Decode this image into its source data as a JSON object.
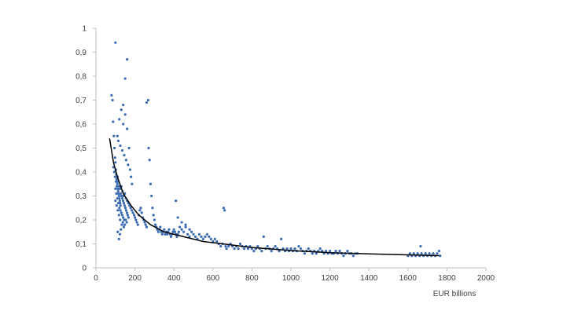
{
  "chart_data": {
    "type": "scatter",
    "title": "",
    "xlabel": "EUR billions",
    "ylabel": "",
    "xlim": [
      0,
      2000
    ],
    "ylim": [
      0,
      1
    ],
    "x_ticks": [
      0,
      200,
      400,
      600,
      800,
      1000,
      1200,
      1400,
      1600,
      1800,
      2000
    ],
    "y_ticks": [
      0,
      0.1,
      0.2,
      0.3,
      0.4,
      0.5,
      0.6,
      0.7,
      0.8,
      0.9,
      1
    ],
    "y_tick_labels": [
      "0",
      "0,1",
      "0,2",
      "0,3",
      "0,4",
      "0,5",
      "0,6",
      "0,7",
      "0,8",
      "0,9",
      "1"
    ],
    "grid": false,
    "legend": "none",
    "colors": {
      "points": "#3a6bb0",
      "trend": "#000000",
      "axis": "#bfbfbf"
    },
    "series": [
      {
        "points": [
          [
            80,
            0.72
          ],
          [
            85,
            0.7
          ],
          [
            88,
            0.61
          ],
          [
            92,
            0.55
          ],
          [
            95,
            0.5
          ],
          [
            98,
            0.46
          ],
          [
            100,
            0.44
          ],
          [
            102,
            0.41
          ],
          [
            104,
            0.39
          ],
          [
            106,
            0.37
          ],
          [
            108,
            0.36
          ],
          [
            110,
            0.35
          ],
          [
            112,
            0.33
          ],
          [
            114,
            0.32
          ],
          [
            116,
            0.31
          ],
          [
            118,
            0.3
          ],
          [
            120,
            0.29
          ],
          [
            122,
            0.28
          ],
          [
            124,
            0.27
          ],
          [
            126,
            0.26
          ],
          [
            90,
            0.42
          ],
          [
            94,
            0.4
          ],
          [
            98,
            0.38
          ],
          [
            103,
            0.36
          ],
          [
            107,
            0.34
          ],
          [
            111,
            0.38
          ],
          [
            115,
            0.36
          ],
          [
            119,
            0.34
          ],
          [
            123,
            0.33
          ],
          [
            127,
            0.31
          ],
          [
            131,
            0.3
          ],
          [
            135,
            0.29
          ],
          [
            139,
            0.28
          ],
          [
            143,
            0.27
          ],
          [
            147,
            0.26
          ],
          [
            151,
            0.25
          ],
          [
            155,
            0.24
          ],
          [
            159,
            0.23
          ],
          [
            163,
            0.22
          ],
          [
            167,
            0.21
          ],
          [
            100,
            0.33
          ],
          [
            105,
            0.31
          ],
          [
            110,
            0.29
          ],
          [
            115,
            0.27
          ],
          [
            120,
            0.25
          ],
          [
            125,
            0.24
          ],
          [
            130,
            0.23
          ],
          [
            135,
            0.22
          ],
          [
            140,
            0.21
          ],
          [
            145,
            0.2
          ],
          [
            112,
            0.15
          ],
          [
            118,
            0.12
          ],
          [
            123,
            0.14
          ],
          [
            128,
            0.16
          ],
          [
            133,
            0.18
          ],
          [
            138,
            0.19
          ],
          [
            143,
            0.17
          ],
          [
            148,
            0.18
          ],
          [
            153,
            0.2
          ],
          [
            158,
            0.19
          ],
          [
            100,
            0.94
          ],
          [
            160,
            0.87
          ],
          [
            150,
            0.79
          ],
          [
            140,
            0.68
          ],
          [
            130,
            0.66
          ],
          [
            150,
            0.64
          ],
          [
            120,
            0.62
          ],
          [
            140,
            0.6
          ],
          [
            160,
            0.58
          ],
          [
            170,
            0.5
          ],
          [
            110,
            0.55
          ],
          [
            115,
            0.53
          ],
          [
            125,
            0.51
          ],
          [
            135,
            0.49
          ],
          [
            145,
            0.47
          ],
          [
            155,
            0.45
          ],
          [
            165,
            0.43
          ],
          [
            175,
            0.41
          ],
          [
            180,
            0.38
          ],
          [
            185,
            0.35
          ],
          [
            100,
            0.28
          ],
          [
            106,
            0.26
          ],
          [
            112,
            0.24
          ],
          [
            118,
            0.22
          ],
          [
            124,
            0.2
          ],
          [
            130,
            0.34
          ],
          [
            136,
            0.32
          ],
          [
            142,
            0.3
          ],
          [
            148,
            0.31
          ],
          [
            154,
            0.29
          ],
          [
            160,
            0.28
          ],
          [
            166,
            0.27
          ],
          [
            172,
            0.26
          ],
          [
            178,
            0.25
          ],
          [
            184,
            0.24
          ],
          [
            190,
            0.23
          ],
          [
            196,
            0.22
          ],
          [
            200,
            0.21
          ],
          [
            205,
            0.2
          ],
          [
            210,
            0.19
          ],
          [
            215,
            0.18
          ],
          [
            220,
            0.22
          ],
          [
            225,
            0.24
          ],
          [
            230,
            0.25
          ],
          [
            235,
            0.23
          ],
          [
            240,
            0.21
          ],
          [
            245,
            0.2
          ],
          [
            250,
            0.19
          ],
          [
            255,
            0.18
          ],
          [
            260,
            0.17
          ],
          [
            260,
            0.69
          ],
          [
            268,
            0.7
          ],
          [
            270,
            0.5
          ],
          [
            275,
            0.45
          ],
          [
            280,
            0.35
          ],
          [
            285,
            0.3
          ],
          [
            290,
            0.25
          ],
          [
            295,
            0.22
          ],
          [
            300,
            0.2
          ],
          [
            305,
            0.18
          ],
          [
            310,
            0.17
          ],
          [
            315,
            0.16
          ],
          [
            320,
            0.15
          ],
          [
            325,
            0.16
          ],
          [
            330,
            0.17
          ],
          [
            335,
            0.15
          ],
          [
            340,
            0.14
          ],
          [
            345,
            0.15
          ],
          [
            350,
            0.16
          ],
          [
            355,
            0.14
          ],
          [
            360,
            0.15
          ],
          [
            365,
            0.14
          ],
          [
            370,
            0.15
          ],
          [
            375,
            0.16
          ],
          [
            380,
            0.14
          ],
          [
            385,
            0.13
          ],
          [
            390,
            0.14
          ],
          [
            395,
            0.15
          ],
          [
            400,
            0.16
          ],
          [
            405,
            0.15
          ],
          [
            410,
            0.14
          ],
          [
            415,
            0.13
          ],
          [
            420,
            0.14
          ],
          [
            425,
            0.15
          ],
          [
            430,
            0.17
          ],
          [
            440,
            0.16
          ],
          [
            450,
            0.15
          ],
          [
            460,
            0.18
          ],
          [
            470,
            0.14
          ],
          [
            480,
            0.13
          ],
          [
            410,
            0.28
          ],
          [
            420,
            0.21
          ],
          [
            440,
            0.19
          ],
          [
            460,
            0.17
          ],
          [
            480,
            0.16
          ],
          [
            490,
            0.15
          ],
          [
            500,
            0.14
          ],
          [
            510,
            0.13
          ],
          [
            520,
            0.12
          ],
          [
            530,
            0.14
          ],
          [
            540,
            0.13
          ],
          [
            550,
            0.12
          ],
          [
            560,
            0.13
          ],
          [
            570,
            0.14
          ],
          [
            580,
            0.13
          ],
          [
            590,
            0.12
          ],
          [
            600,
            0.11
          ],
          [
            610,
            0.12
          ],
          [
            620,
            0.11
          ],
          [
            630,
            0.1
          ],
          [
            640,
            0.09
          ],
          [
            650,
            0.1
          ],
          [
            655,
            0.25
          ],
          [
            660,
            0.24
          ],
          [
            665,
            0.09
          ],
          [
            670,
            0.08
          ],
          [
            680,
            0.09
          ],
          [
            690,
            0.1
          ],
          [
            700,
            0.09
          ],
          [
            710,
            0.08
          ],
          [
            720,
            0.09
          ],
          [
            730,
            0.08
          ],
          [
            740,
            0.1
          ],
          [
            750,
            0.09
          ],
          [
            760,
            0.08
          ],
          [
            770,
            0.09
          ],
          [
            780,
            0.08
          ],
          [
            790,
            0.09
          ],
          [
            800,
            0.08
          ],
          [
            810,
            0.07
          ],
          [
            820,
            0.08
          ],
          [
            830,
            0.09
          ],
          [
            840,
            0.08
          ],
          [
            850,
            0.07
          ],
          [
            860,
            0.13
          ],
          [
            870,
            0.08
          ],
          [
            880,
            0.09
          ],
          [
            890,
            0.08
          ],
          [
            900,
            0.07
          ],
          [
            910,
            0.08
          ],
          [
            920,
            0.09
          ],
          [
            930,
            0.08
          ],
          [
            940,
            0.07
          ],
          [
            950,
            0.12
          ],
          [
            960,
            0.08
          ],
          [
            970,
            0.07
          ],
          [
            980,
            0.08
          ],
          [
            990,
            0.07
          ],
          [
            1000,
            0.08
          ],
          [
            1010,
            0.07
          ],
          [
            1020,
            0.08
          ],
          [
            1030,
            0.07
          ],
          [
            1040,
            0.09
          ],
          [
            1050,
            0.08
          ],
          [
            1060,
            0.07
          ],
          [
            1070,
            0.06
          ],
          [
            1080,
            0.07
          ],
          [
            1090,
            0.08
          ],
          [
            1100,
            0.07
          ],
          [
            1110,
            0.06
          ],
          [
            1120,
            0.07
          ],
          [
            1130,
            0.06
          ],
          [
            1140,
            0.07
          ],
          [
            1150,
            0.08
          ],
          [
            1160,
            0.07
          ],
          [
            1170,
            0.06
          ],
          [
            1180,
            0.07
          ],
          [
            1190,
            0.06
          ],
          [
            1200,
            0.07
          ],
          [
            1210,
            0.06
          ],
          [
            1220,
            0.06
          ],
          [
            1230,
            0.07
          ],
          [
            1240,
            0.06
          ],
          [
            1250,
            0.07
          ],
          [
            1260,
            0.06
          ],
          [
            1270,
            0.05
          ],
          [
            1280,
            0.06
          ],
          [
            1290,
            0.07
          ],
          [
            1300,
            0.06
          ],
          [
            1310,
            0.06
          ],
          [
            1320,
            0.05
          ],
          [
            1330,
            0.06
          ],
          [
            1340,
            0.06
          ],
          [
            1600,
            0.05
          ],
          [
            1610,
            0.06
          ],
          [
            1620,
            0.05
          ],
          [
            1630,
            0.06
          ],
          [
            1640,
            0.05
          ],
          [
            1650,
            0.06
          ],
          [
            1660,
            0.05
          ],
          [
            1665,
            0.09
          ],
          [
            1670,
            0.06
          ],
          [
            1680,
            0.05
          ],
          [
            1690,
            0.06
          ],
          [
            1700,
            0.05
          ],
          [
            1710,
            0.06
          ],
          [
            1720,
            0.05
          ],
          [
            1730,
            0.06
          ],
          [
            1740,
            0.05
          ],
          [
            1750,
            0.06
          ],
          [
            1760,
            0.07
          ],
          [
            1765,
            0.05
          ]
        ]
      }
    ],
    "trendline": {
      "type": "power",
      "points": [
        [
          70,
          0.54
        ],
        [
          90,
          0.44
        ],
        [
          110,
          0.38
        ],
        [
          140,
          0.31
        ],
        [
          180,
          0.26
        ],
        [
          220,
          0.22
        ],
        [
          280,
          0.18
        ],
        [
          350,
          0.15
        ],
        [
          450,
          0.13
        ],
        [
          550,
          0.11
        ],
        [
          650,
          0.1
        ],
        [
          800,
          0.085
        ],
        [
          1000,
          0.072
        ],
        [
          1200,
          0.063
        ],
        [
          1400,
          0.058
        ],
        [
          1600,
          0.054
        ],
        [
          1760,
          0.051
        ]
      ]
    }
  }
}
